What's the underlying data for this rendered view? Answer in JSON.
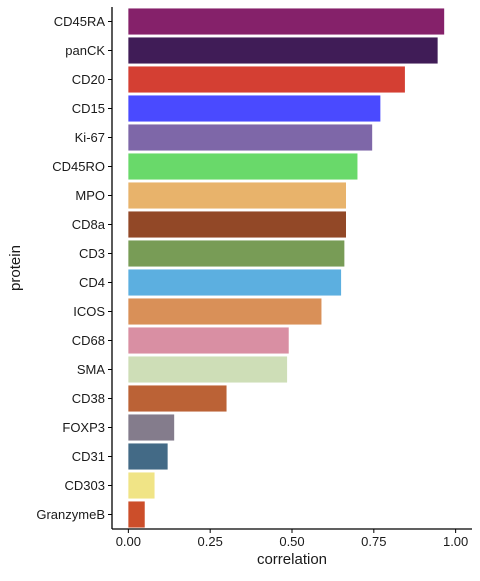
{
  "chart_data": {
    "type": "bar",
    "orientation": "horizontal",
    "xlabel": "correlation",
    "ylabel": "protein",
    "xlim": [
      -0.05,
      1.05
    ],
    "x_ticks": [
      "0.00",
      "0.25",
      "0.50",
      "0.75",
      "1.00"
    ],
    "x_tick_values": [
      0,
      0.25,
      0.5,
      0.75,
      1.0
    ],
    "grid": false,
    "legend": "none",
    "categories": [
      "CD45RA",
      "panCK",
      "CD20",
      "CD15",
      "Ki-67",
      "CD45RO",
      "MPO",
      "CD8a",
      "CD3",
      "CD4",
      "ICOS",
      "CD68",
      "SMA",
      "CD38",
      "FOXP3",
      "CD31",
      "CD303",
      "GranzymeB"
    ],
    "values": [
      0.965,
      0.945,
      0.845,
      0.77,
      0.745,
      0.7,
      0.665,
      0.665,
      0.66,
      0.65,
      0.59,
      0.49,
      0.485,
      0.3,
      0.14,
      0.12,
      0.08,
      0.05
    ],
    "colors": [
      "#85216a",
      "#401c57",
      "#d43f33",
      "#4a4aff",
      "#7e67a8",
      "#69d96a",
      "#e8b36b",
      "#924827",
      "#789c56",
      "#5cafe0",
      "#d99058",
      "#d98fa3",
      "#cedeb7",
      "#bb6236",
      "#847c8c",
      "#436a86",
      "#f0e486",
      "#cc4e2a"
    ]
  }
}
